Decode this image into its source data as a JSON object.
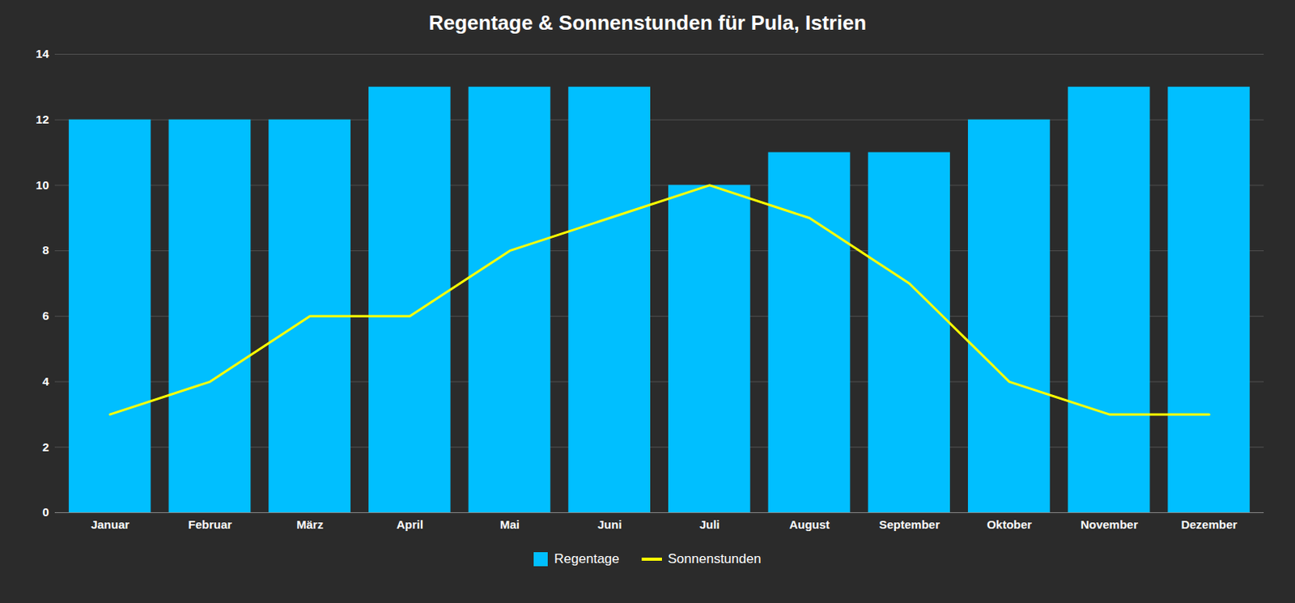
{
  "chart_data": {
    "type": "bar",
    "title": "Regentage & Sonnenstunden für Pula, Istrien",
    "categories": [
      "Januar",
      "Februar",
      "März",
      "April",
      "Mai",
      "Juni",
      "Juli",
      "August",
      "September",
      "Oktober",
      "November",
      "Dezember"
    ],
    "series": [
      {
        "name": "Regentage",
        "type": "bar",
        "color": "#00BFFF",
        "values": [
          12,
          12,
          12,
          13,
          13,
          13,
          10,
          11,
          11,
          12,
          13,
          13
        ]
      },
      {
        "name": "Sonnenstunden",
        "type": "line",
        "color": "#FFFF00",
        "values": [
          3,
          4,
          6,
          6,
          8,
          9,
          10,
          9,
          7,
          4,
          3,
          3
        ]
      }
    ],
    "ylim": [
      0,
      14
    ],
    "yticks": [
      0,
      2,
      4,
      6,
      8,
      10,
      12,
      14
    ],
    "grid": true,
    "legend": "bottom"
  }
}
